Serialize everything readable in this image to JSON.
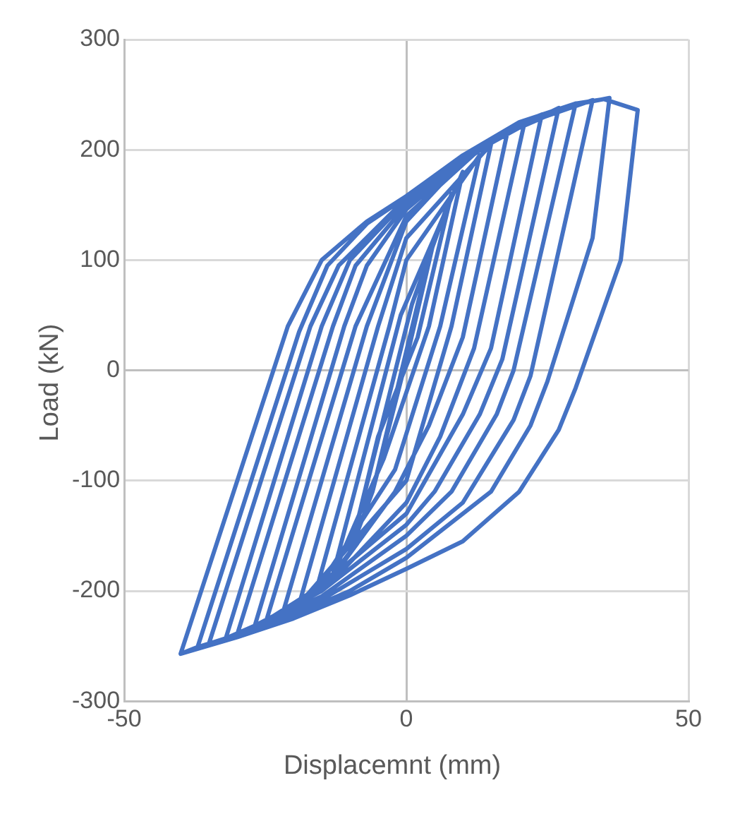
{
  "chart_data": {
    "type": "line",
    "xlabel": "Displacemnt (mm)",
    "ylabel": "Load (kN)",
    "xlim": [
      -50,
      50
    ],
    "xticks": [
      -50,
      0,
      50
    ],
    "ylim": [
      -300,
      300
    ],
    "yticks": [
      -300,
      -200,
      -100,
      0,
      100,
      200,
      300
    ],
    "grid": true,
    "marker": "none",
    "line_style": "solid",
    "series": [
      {
        "color": "#4472c4",
        "x": [
          -6,
          2,
          5,
          0,
          -6,
          -10,
          1,
          8,
          2,
          -5,
          -10,
          -13,
          -1,
          10,
          4,
          -4,
          -13,
          -16,
          -3,
          0,
          13,
          6,
          -2,
          -16,
          -19,
          -5,
          0,
          15,
          8,
          0,
          -19,
          -22,
          -7,
          0,
          10,
          18,
          10,
          4,
          -2,
          -12,
          -22,
          -25,
          -9,
          0,
          12,
          21,
          12,
          6,
          0,
          -12,
          -25,
          -27,
          -11,
          -7,
          0,
          12,
          24,
          15,
          10,
          0,
          -15,
          -27,
          -30,
          -13,
          -9,
          0,
          15,
          27,
          17,
          13,
          5,
          0,
          -15,
          -30,
          -32,
          -15,
          -10,
          0,
          10,
          20,
          30,
          19,
          16,
          8,
          0,
          -15,
          -32,
          -35,
          -17,
          -12,
          0,
          10,
          20,
          33,
          22,
          19,
          10,
          0,
          -15,
          -25,
          -35,
          -37,
          -19,
          -14,
          -7,
          0,
          10,
          20,
          30,
          36,
          33,
          25,
          22,
          15,
          5,
          0,
          -10,
          -20,
          -30,
          -37,
          -40,
          -21,
          -15,
          -7,
          0,
          10,
          20,
          30,
          35,
          41,
          38,
          30,
          27,
          20,
          10,
          0,
          -10,
          -20,
          -30,
          -40
        ],
        "values": [
          -110,
          60,
          120,
          10,
          -110,
          -165,
          60,
          160,
          30,
          -60,
          -165,
          -185,
          50,
          180,
          40,
          -80,
          -185,
          -200,
          40,
          100,
          195,
          40,
          -90,
          -200,
          -212,
          40,
          120,
          205,
          40,
          -100,
          -212,
          -222,
          40,
          135,
          190,
          218,
          30,
          -50,
          -110,
          -180,
          -222,
          -230,
          40,
          140,
          196,
          226,
          20,
          -60,
          -120,
          -185,
          -230,
          -234,
          40,
          95,
          146,
          198,
          232,
          20,
          -40,
          -130,
          -195,
          -234,
          -240,
          40,
          95,
          150,
          208,
          238,
          10,
          -40,
          -110,
          -140,
          -200,
          -240,
          -243,
          40,
          100,
          154,
          192,
          220,
          242,
          0,
          -40,
          -110,
          -150,
          -205,
          -243,
          -248,
          40,
          95,
          156,
          194,
          222,
          245,
          -5,
          -45,
          -120,
          -162,
          -208,
          -232,
          -248,
          -251,
          35,
          95,
          133,
          157,
          194,
          224,
          241,
          247,
          120,
          -10,
          -50,
          -110,
          -150,
          -170,
          -200,
          -222,
          -240,
          -251,
          -257,
          40,
          100,
          135,
          158,
          195,
          225,
          242,
          246,
          236,
          100,
          -16,
          -54,
          -110,
          -155,
          -180,
          -204,
          -225,
          -242,
          -257
        ]
      }
    ]
  }
}
